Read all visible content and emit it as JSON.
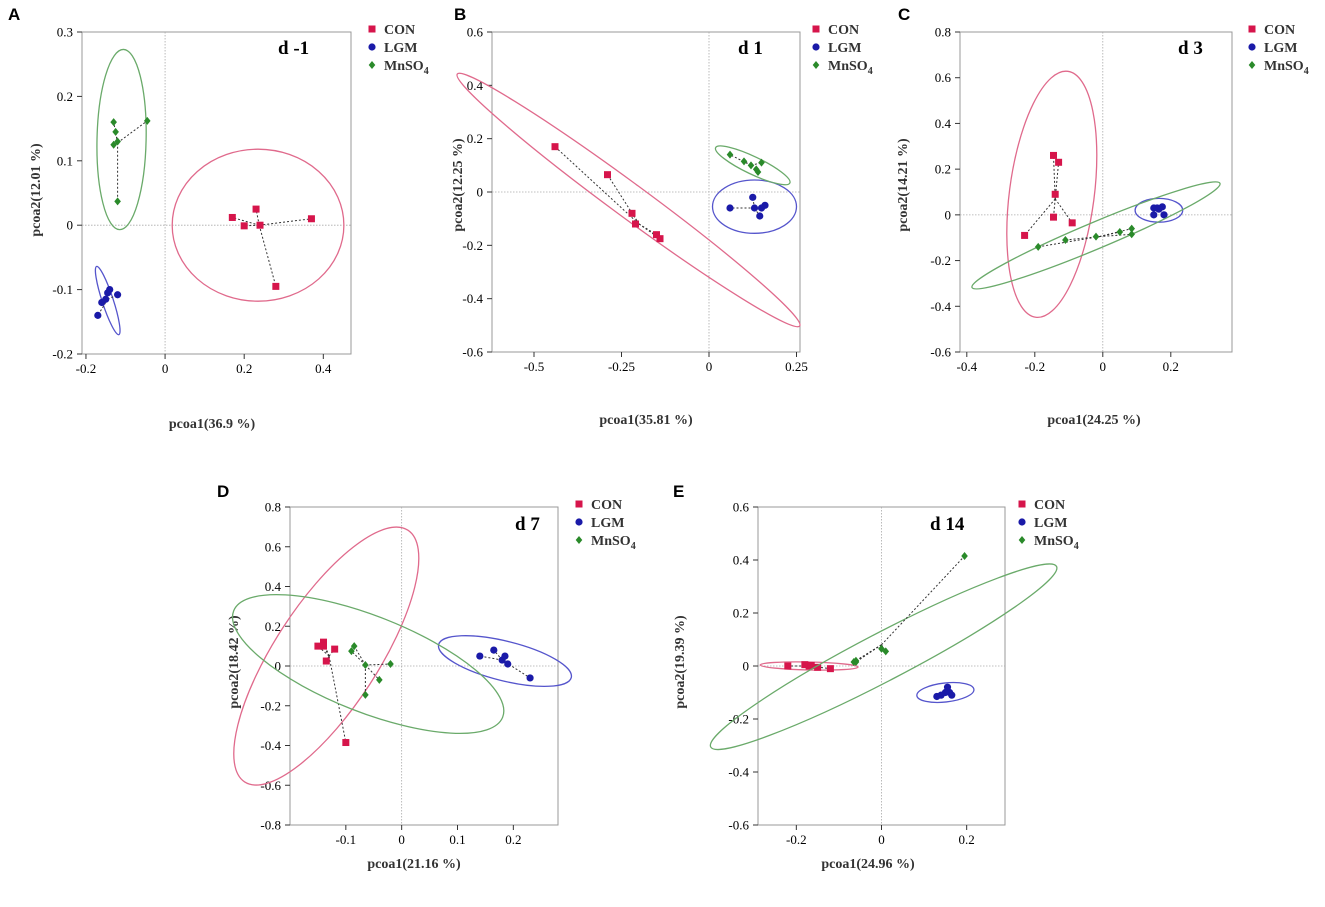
{
  "legend_labels": {
    "CON": "CON",
    "LGM": "LGM",
    "MnSO4": "MnSO",
    "MnSO4_sub": "4"
  },
  "colors": {
    "CON": "#d6154b",
    "LGM": "#1a1aa8",
    "MnSO4": "#2a8a2a",
    "CON_ellipse": "#e06a8c",
    "LGM_ellipse": "#5555cc",
    "MnSO4_ellipse": "#6aaa6a"
  },
  "chart_data": [
    {
      "panel": "A",
      "type": "scatter",
      "title": "d -1",
      "xlabel": "pcoa1(36.9 %)",
      "ylabel": "pcoa2(12.01 %)",
      "xlim": [
        -0.21,
        0.47
      ],
      "ylim": [
        -0.2,
        0.3
      ],
      "xticks": [
        -0.2,
        0,
        0.2,
        0.4
      ],
      "xtick_labels": [
        "-0.2",
        "0",
        "0.2",
        "0.4"
      ],
      "yticks": [
        -0.2,
        -0.1,
        0,
        0.1,
        0.2,
        0.3
      ],
      "ytick_labels": [
        "-0.2",
        "-0.1",
        "0",
        "0.1",
        "0.2",
        "0.3"
      ],
      "series": [
        {
          "name": "CON",
          "points": [
            [
              0.17,
              0.012
            ],
            [
              0.2,
              -0.001
            ],
            [
              0.23,
              0.025
            ],
            [
              0.24,
              0.0
            ],
            [
              0.28,
              -0.095
            ],
            [
              0.37,
              0.01
            ]
          ],
          "centroid": [
            0.238,
            0.0
          ],
          "ellipse": {
            "cx": 0.235,
            "cy": 0.0,
            "rx": 0.217,
            "ry": 0.118,
            "angle": 0
          }
        },
        {
          "name": "LGM",
          "points": [
            [
              -0.17,
              -0.14
            ],
            [
              -0.16,
              -0.12
            ],
            [
              -0.145,
              -0.105
            ],
            [
              -0.14,
              -0.1
            ],
            [
              -0.12,
              -0.108
            ],
            [
              -0.15,
              -0.115
            ]
          ],
          "centroid": [
            -0.145,
            -0.115
          ],
          "ellipse": {
            "cx": -0.145,
            "cy": -0.117,
            "rx": 0.06,
            "ry": 0.012,
            "angle": -62
          }
        },
        {
          "name": "MnSO4",
          "points": [
            [
              -0.13,
              0.16
            ],
            [
              -0.125,
              0.145
            ],
            [
              -0.13,
              0.125
            ],
            [
              -0.12,
              0.13
            ],
            [
              -0.045,
              0.162
            ],
            [
              -0.12,
              0.037
            ]
          ],
          "centroid": [
            -0.12,
            0.128
          ],
          "ellipse": {
            "cx": -0.11,
            "cy": 0.133,
            "rx": 0.14,
            "ry": 0.062,
            "angle": 88
          }
        }
      ]
    },
    {
      "panel": "B",
      "type": "scatter",
      "title": "d 1",
      "xlabel": "pcoa1(35.81 %)",
      "ylabel": "pcoa2(12.25 %)",
      "xlim": [
        -0.62,
        0.26
      ],
      "ylim": [
        -0.6,
        0.6
      ],
      "xticks": [
        -0.5,
        -0.25,
        0,
        0.25
      ],
      "xtick_labels": [
        "-0.5",
        "-0.25",
        "0",
        "0.25"
      ],
      "yticks": [
        -0.6,
        -0.4,
        -0.2,
        0,
        0.2,
        0.4,
        0.6
      ],
      "ytick_labels": [
        "-0.6",
        "-0.4",
        "-0.2",
        "0",
        "0.2",
        "0.4",
        "0.6"
      ],
      "series": [
        {
          "name": "CON",
          "points": [
            [
              -0.44,
              0.17
            ],
            [
              -0.29,
              0.065
            ],
            [
              -0.22,
              -0.08
            ],
            [
              -0.21,
              -0.12
            ],
            [
              -0.15,
              -0.16
            ],
            [
              -0.14,
              -0.175
            ]
          ],
          "centroid": [
            -0.2,
            -0.12
          ],
          "ellipse": {
            "cx": -0.23,
            "cy": -0.03,
            "rx": 0.68,
            "ry": 0.055,
            "angle": -44
          }
        },
        {
          "name": "LGM",
          "points": [
            [
              0.06,
              -0.06
            ],
            [
              0.125,
              -0.02
            ],
            [
              0.13,
              -0.06
            ],
            [
              0.145,
              -0.09
            ],
            [
              0.16,
              -0.05
            ],
            [
              0.15,
              -0.06
            ]
          ],
          "centroid": [
            0.13,
            -0.06
          ],
          "ellipse": {
            "cx": 0.13,
            "cy": -0.055,
            "rx": 0.12,
            "ry": 0.1,
            "angle": 0
          }
        },
        {
          "name": "MnSO4",
          "points": [
            [
              0.06,
              0.14
            ],
            [
              0.1,
              0.115
            ],
            [
              0.12,
              0.1
            ],
            [
              0.135,
              0.085
            ],
            [
              0.14,
              0.075
            ],
            [
              0.15,
              0.11
            ]
          ],
          "centroid": [
            0.12,
            0.1
          ],
          "ellipse": {
            "cx": 0.125,
            "cy": 0.1,
            "rx": 0.125,
            "ry": 0.03,
            "angle": -32
          }
        }
      ]
    },
    {
      "panel": "C",
      "type": "scatter",
      "title": "d 3",
      "xlabel": "pcoa1(24.25 %)",
      "ylabel": "pcoa2(14.21 %)",
      "xlim": [
        -0.42,
        0.38
      ],
      "ylim": [
        -0.6,
        0.8
      ],
      "xticks": [
        -0.4,
        -0.2,
        0,
        0.2
      ],
      "xtick_labels": [
        "-0.4",
        "-0.2",
        "0",
        "0.2"
      ],
      "yticks": [
        -0.6,
        -0.4,
        -0.2,
        0,
        0.2,
        0.4,
        0.6,
        0.8
      ],
      "ytick_labels": [
        "-0.6",
        "-0.4",
        "-0.2",
        "0",
        "0.2",
        "0.4",
        "0.6",
        "0.8"
      ],
      "series": [
        {
          "name": "CON",
          "points": [
            [
              -0.23,
              -0.09
            ],
            [
              -0.145,
              0.26
            ],
            [
              -0.13,
              0.23
            ],
            [
              -0.145,
              -0.01
            ],
            [
              -0.14,
              0.09
            ],
            [
              -0.09,
              -0.035
            ]
          ],
          "centroid": [
            -0.14,
            0.07
          ],
          "ellipse": {
            "cx": -0.15,
            "cy": 0.09,
            "rx": 0.54,
            "ry": 0.125,
            "angle": 85
          }
        },
        {
          "name": "LGM",
          "points": [
            [
              0.15,
              0.03
            ],
            [
              0.15,
              0.0
            ],
            [
              0.175,
              0.035
            ],
            [
              0.18,
              0.0
            ],
            [
              0.165,
              0.025
            ],
            [
              0.16,
              0.03
            ]
          ],
          "centroid": [
            0.165,
            0.02
          ],
          "ellipse": {
            "cx": 0.165,
            "cy": 0.02,
            "rx": 0.07,
            "ry": 0.052,
            "angle": 0
          }
        },
        {
          "name": "MnSO4",
          "points": [
            [
              -0.19,
              -0.14
            ],
            [
              -0.11,
              -0.11
            ],
            [
              -0.02,
              -0.095
            ],
            [
              0.05,
              -0.075
            ],
            [
              0.085,
              -0.06
            ],
            [
              0.085,
              -0.085
            ]
          ],
          "centroid": [
            -0.01,
            -0.095
          ],
          "ellipse": {
            "cx": -0.02,
            "cy": -0.09,
            "rx": 0.43,
            "ry": 0.05,
            "angle": 32
          }
        }
      ]
    },
    {
      "panel": "D",
      "type": "scatter",
      "title": "d 7",
      "xlabel": "pcoa1(21.16 %)",
      "ylabel": "pcoa2(18.42 %)",
      "xlim": [
        -0.2,
        0.28
      ],
      "ylim": [
        -0.8,
        0.8
      ],
      "xticks": [
        -0.1,
        0,
        0.1,
        0.2
      ],
      "xtick_labels": [
        "-0.1",
        "0",
        "0.1",
        "0.2"
      ],
      "yticks": [
        -0.8,
        -0.6,
        -0.4,
        -0.2,
        0,
        0.2,
        0.4,
        0.6,
        0.8
      ],
      "ytick_labels": [
        "-0.8",
        "-0.6",
        "-0.4",
        "-0.2",
        "0",
        "0.2",
        "0.4",
        "0.6",
        "0.8"
      ],
      "series": [
        {
          "name": "CON",
          "points": [
            [
              -0.15,
              0.1
            ],
            [
              -0.14,
              0.12
            ],
            [
              -0.135,
              0.025
            ],
            [
              -0.12,
              0.085
            ],
            [
              -0.1,
              -0.385
            ],
            [
              -0.14,
              0.1
            ]
          ],
          "centroid": [
            -0.13,
            0.05
          ],
          "ellipse": {
            "cx": -0.135,
            "cy": 0.05,
            "rx": 0.65,
            "ry": 0.095,
            "angle": 77
          }
        },
        {
          "name": "LGM",
          "points": [
            [
              0.14,
              0.05
            ],
            [
              0.165,
              0.08
            ],
            [
              0.18,
              0.03
            ],
            [
              0.185,
              0.05
            ],
            [
              0.19,
              0.01
            ],
            [
              0.23,
              -0.06
            ]
          ],
          "centroid": [
            0.18,
            0.03
          ],
          "ellipse": {
            "cx": 0.185,
            "cy": 0.025,
            "rx": 0.145,
            "ry": 0.055,
            "angle": -35
          }
        },
        {
          "name": "MnSO4",
          "points": [
            [
              -0.09,
              0.075
            ],
            [
              -0.085,
              0.1
            ],
            [
              -0.065,
              -0.145
            ],
            [
              -0.04,
              -0.07
            ],
            [
              -0.02,
              0.01
            ],
            [
              -0.065,
              0.005
            ]
          ],
          "centroid": [
            -0.065,
            0.005
          ],
          "ellipse": {
            "cx": -0.06,
            "cy": 0.01,
            "rx": 0.36,
            "ry": 0.11,
            "angle": -48
          }
        }
      ]
    },
    {
      "panel": "E",
      "type": "scatter",
      "title": "d 14",
      "xlabel": "pcoa1(24.96 %)",
      "ylabel": "pcoa2(19.39 %)",
      "xlim": [
        -0.29,
        0.29
      ],
      "ylim": [
        -0.6,
        0.6
      ],
      "xticks": [
        -0.2,
        0,
        0.2
      ],
      "xtick_labels": [
        "-0.2",
        "0",
        "0.2"
      ],
      "yticks": [
        -0.6,
        -0.4,
        -0.2,
        0,
        0.2,
        0.4,
        0.6
      ],
      "ytick_labels": [
        "-0.6",
        "-0.4",
        "-0.2",
        "0",
        "0.2",
        "0.4",
        "0.6"
      ],
      "series": [
        {
          "name": "CON",
          "points": [
            [
              -0.22,
              0.0
            ],
            [
              -0.18,
              0.005
            ],
            [
              -0.17,
              0.0
            ],
            [
              -0.165,
              0.002
            ],
            [
              -0.15,
              -0.005
            ],
            [
              -0.12,
              -0.01
            ]
          ],
          "centroid": [
            -0.17,
            0.0
          ],
          "ellipse": {
            "cx": -0.17,
            "cy": 0.0,
            "rx": 0.115,
            "ry": 0.015,
            "angle": -2
          }
        },
        {
          "name": "LGM",
          "points": [
            [
              0.13,
              -0.115
            ],
            [
              0.14,
              -0.11
            ],
            [
              0.155,
              -0.08
            ],
            [
              0.16,
              -0.1
            ],
            [
              0.165,
              -0.11
            ],
            [
              0.15,
              -0.1
            ]
          ],
          "centroid": [
            0.15,
            -0.1
          ],
          "ellipse": {
            "cx": 0.15,
            "cy": -0.1,
            "rx": 0.068,
            "ry": 0.035,
            "angle": 10
          }
        },
        {
          "name": "MnSO4",
          "points": [
            [
              -0.065,
              0.015
            ],
            [
              -0.06,
              0.02
            ],
            [
              0.0,
              0.065
            ],
            [
              0.01,
              0.055
            ],
            [
              0.195,
              0.415
            ],
            [
              -0.06,
              0.015
            ]
          ],
          "centroid": [
            0.0,
            0.08
          ],
          "ellipse": {
            "cx": 0.005,
            "cy": 0.035,
            "rx": 0.53,
            "ry": 0.07,
            "angle": 40
          }
        }
      ]
    }
  ]
}
